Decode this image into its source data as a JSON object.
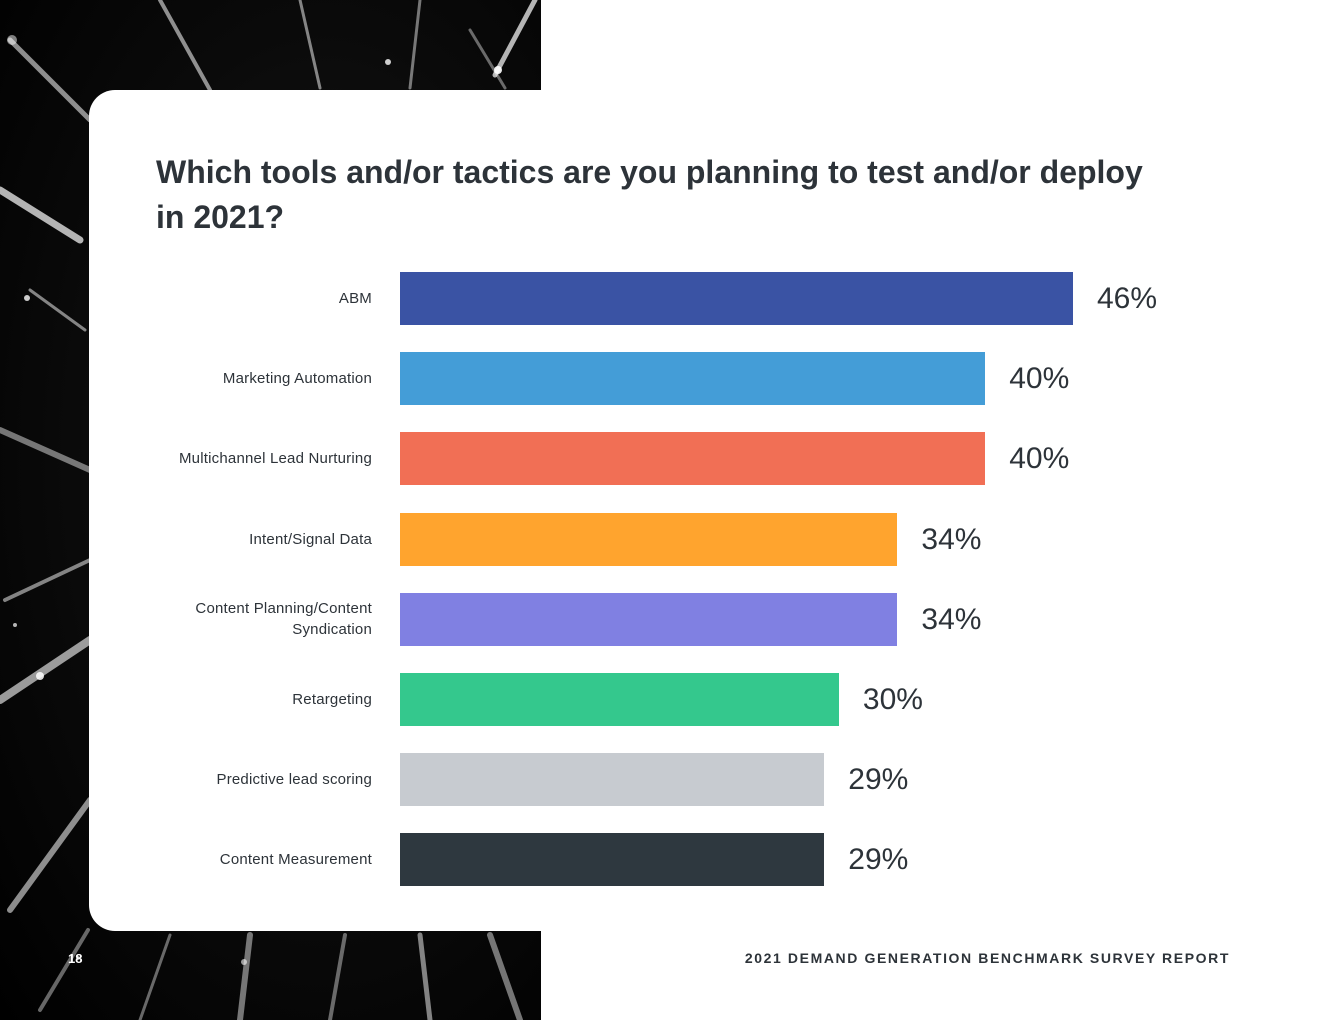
{
  "page": {
    "number": "18",
    "footer_title": "2021 DEMAND GENERATION BENCHMARK SURVEY REPORT"
  },
  "chart_data": {
    "type": "bar",
    "orientation": "horizontal",
    "title": "Which tools and/or tactics are you planning to test and/or deploy in 2021?",
    "categories": [
      "ABM",
      "Marketing Automation",
      "Multichannel Lead Nurturing",
      "Intent/Signal Data",
      "Content Planning/Content Syndication",
      "Retargeting",
      "Predictive lead scoring",
      "Content Measurement"
    ],
    "values": [
      46,
      40,
      40,
      34,
      34,
      30,
      29,
      29
    ],
    "value_labels": [
      "46%",
      "40%",
      "40%",
      "34%",
      "34%",
      "30%",
      "29%",
      "29%"
    ],
    "colors": [
      "#3a53a4",
      "#449dd7",
      "#f16f55",
      "#ffa42e",
      "#8080e2",
      "#34c88d",
      "#c7cbd0",
      "#2e383f"
    ],
    "unit": "%",
    "xlim": [
      0,
      46
    ],
    "grid": false,
    "legend": "none"
  }
}
